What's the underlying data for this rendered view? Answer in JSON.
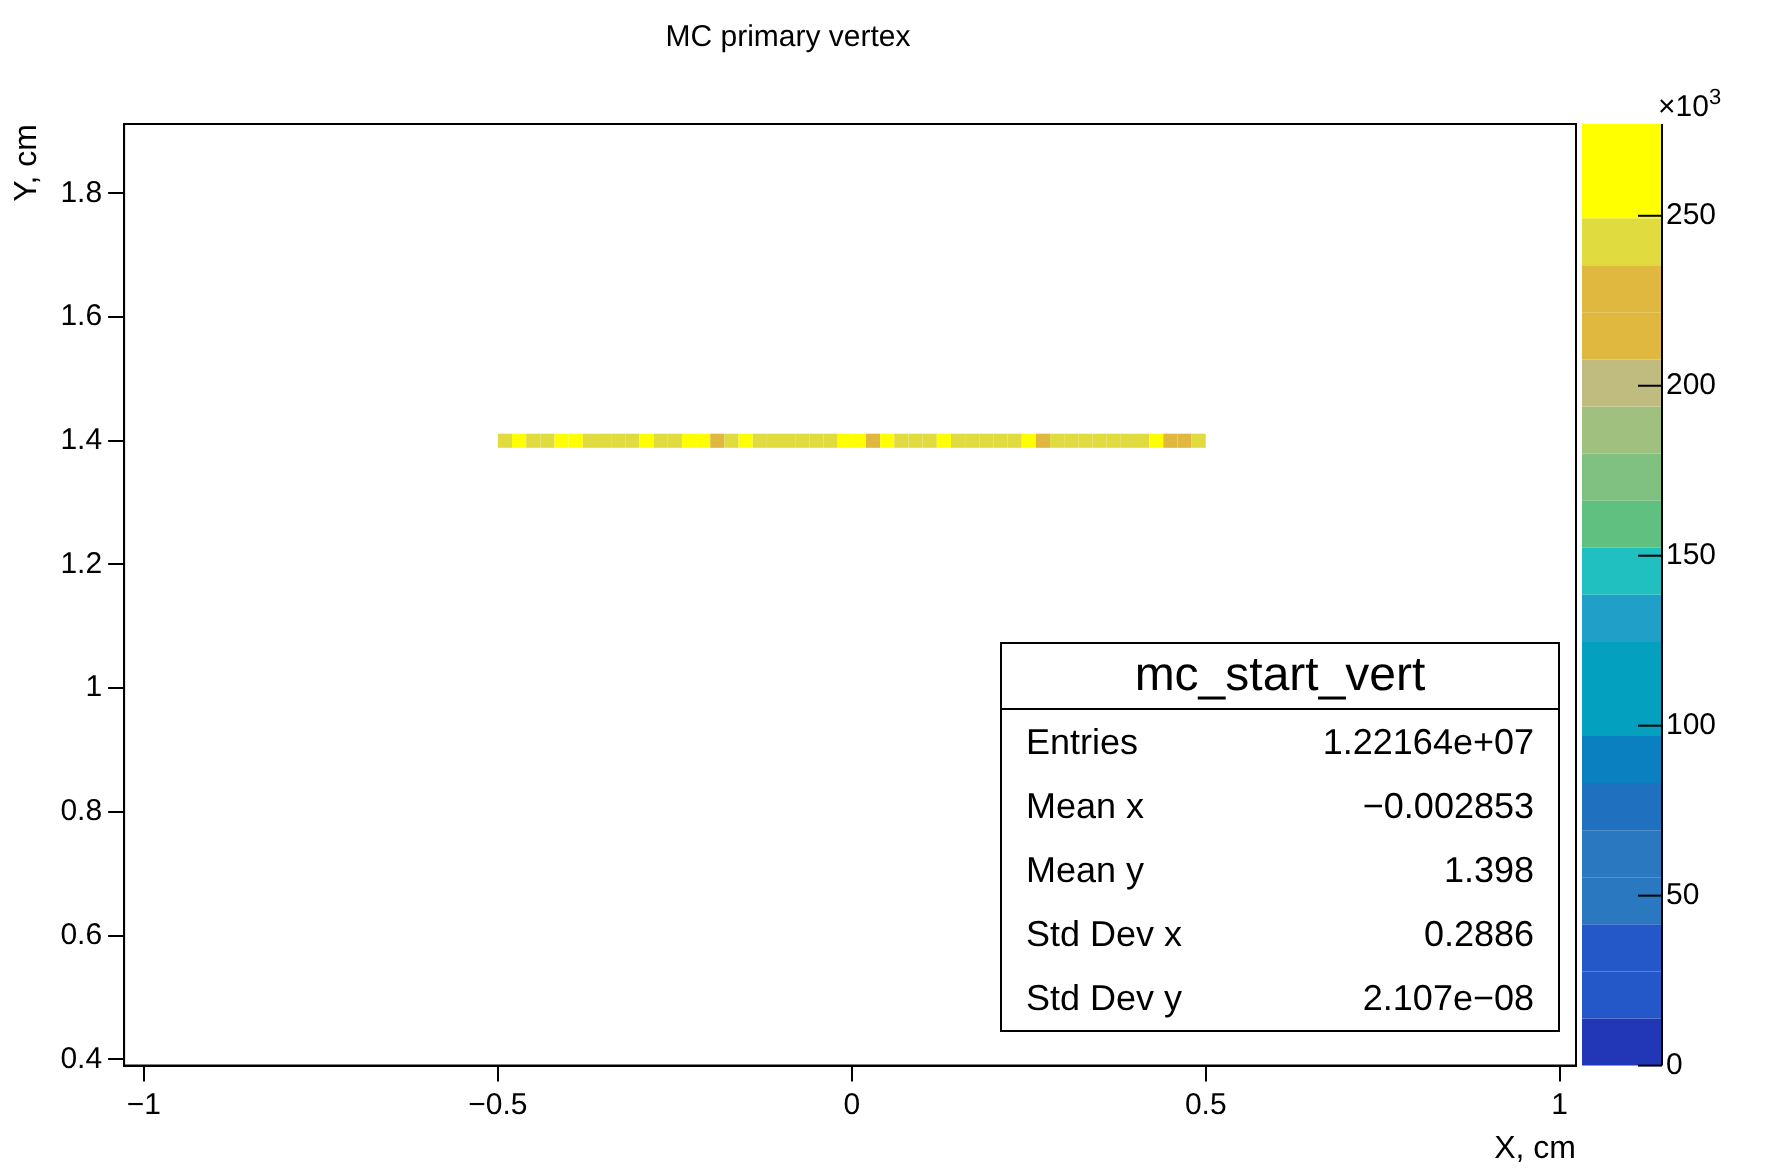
{
  "chart_data": {
    "type": "scatter",
    "title": "MC primary vertex",
    "xlabel": "X, cm",
    "ylabel": "Y, cm",
    "clabel": "×10$^{3}$",
    "x": [
      -0.49,
      -0.47,
      -0.45,
      -0.43,
      -0.41,
      -0.39,
      -0.37,
      -0.35,
      -0.33,
      -0.31,
      -0.29,
      -0.27,
      -0.25,
      -0.23,
      -0.21,
      -0.19,
      -0.17,
      -0.15,
      -0.13,
      -0.11,
      -0.09,
      -0.07,
      -0.05,
      -0.03,
      -0.01,
      0.01,
      0.03,
      0.05,
      0.07,
      0.09,
      0.11,
      0.13,
      0.15,
      0.17,
      0.19,
      0.21,
      0.23,
      0.25,
      0.27,
      0.29,
      0.31,
      0.33,
      0.35,
      0.37,
      0.39,
      0.41,
      0.43,
      0.45,
      0.47,
      0.49
    ],
    "values": [
      1.4,
      1.4,
      1.4,
      1.4,
      1.4,
      1.4,
      1.4,
      1.4,
      1.4,
      1.4,
      1.4,
      1.4,
      1.4,
      1.4,
      1.4,
      1.4,
      1.4,
      1.4,
      1.4,
      1.4,
      1.4,
      1.4,
      1.4,
      1.4,
      1.4,
      1.4,
      1.4,
      1.4,
      1.4,
      1.4,
      1.4,
      1.4,
      1.4,
      1.4,
      1.4,
      1.4,
      1.4,
      1.4,
      1.4,
      1.4,
      1.4,
      1.4,
      1.4,
      1.4,
      1.4,
      1.4,
      1.4,
      1.4,
      1.4,
      1.4
    ],
    "cvalues": [
      242,
      255,
      242,
      242,
      255,
      255,
      242,
      242,
      242,
      242,
      255,
      242,
      242,
      255,
      255,
      228,
      242,
      255,
      242,
      242,
      242,
      242,
      242,
      242,
      255,
      255,
      228,
      255,
      242,
      242,
      242,
      255,
      242,
      242,
      242,
      242,
      242,
      255,
      228,
      242,
      242,
      242,
      242,
      242,
      242,
      242,
      255,
      228,
      228,
      242
    ],
    "clim": [
      0,
      277
    ],
    "cticks": [
      0,
      50,
      100,
      150,
      200,
      250
    ],
    "marker": "square",
    "grid": false,
    "legend": false,
    "xlim": [
      -1.028,
      1.023
    ],
    "xticks": [
      {
        "value": -1,
        "label": "−1"
      },
      {
        "value": -0.5,
        "label": "−0.5"
      },
      0,
      0.5,
      1
    ],
    "ylim": [
      0.39,
      1.912
    ],
    "yticks": [
      0.4,
      0.6,
      0.8,
      1,
      1.2,
      1.4,
      1.6,
      1.8
    ],
    "annotations": [
      "mc_start_vert",
      "Entries",
      "1.22164e+07",
      "Mean x",
      "−0.002853",
      "Mean y",
      "1.398",
      "Std Dev x",
      "0.2886",
      "Std Dev y",
      "2.107e−08"
    ]
  }
}
